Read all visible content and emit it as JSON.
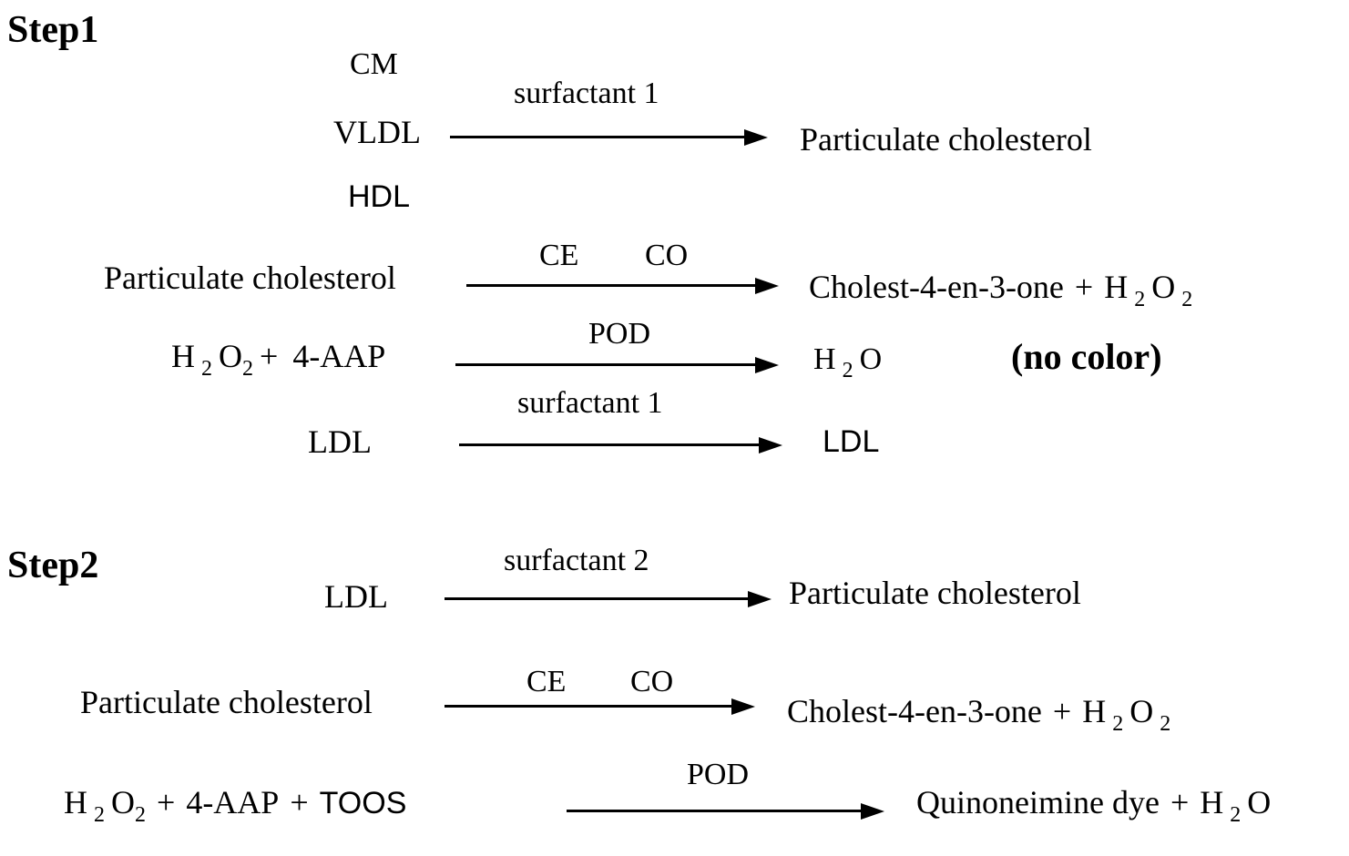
{
  "figure": {
    "step1_title": "Step1",
    "step2_title": "Step2",
    "ink_color": "#000000",
    "background_color": "#ffffff"
  },
  "labels": {
    "surfactant1": "surfactant 1",
    "surfactant2": "surfactant 2",
    "ce": "CE",
    "co": "CO",
    "pod": "POD",
    "no_color": "(no color)"
  },
  "species": {
    "cm": "CM",
    "vldl": "VLDL",
    "hdl": "HDL",
    "ldl": "LDL",
    "particulate_cholesterol": "Particulate cholesterol",
    "cholest_4_en_3_one": "Cholest-4-en-3-one",
    "four_aap": "4-AAP",
    "toos": "TOOS",
    "quinoneimine_dye": "Quinoneimine dye"
  },
  "chem": {
    "H": "H",
    "O": "O",
    "two": "2",
    "plus": "+"
  }
}
